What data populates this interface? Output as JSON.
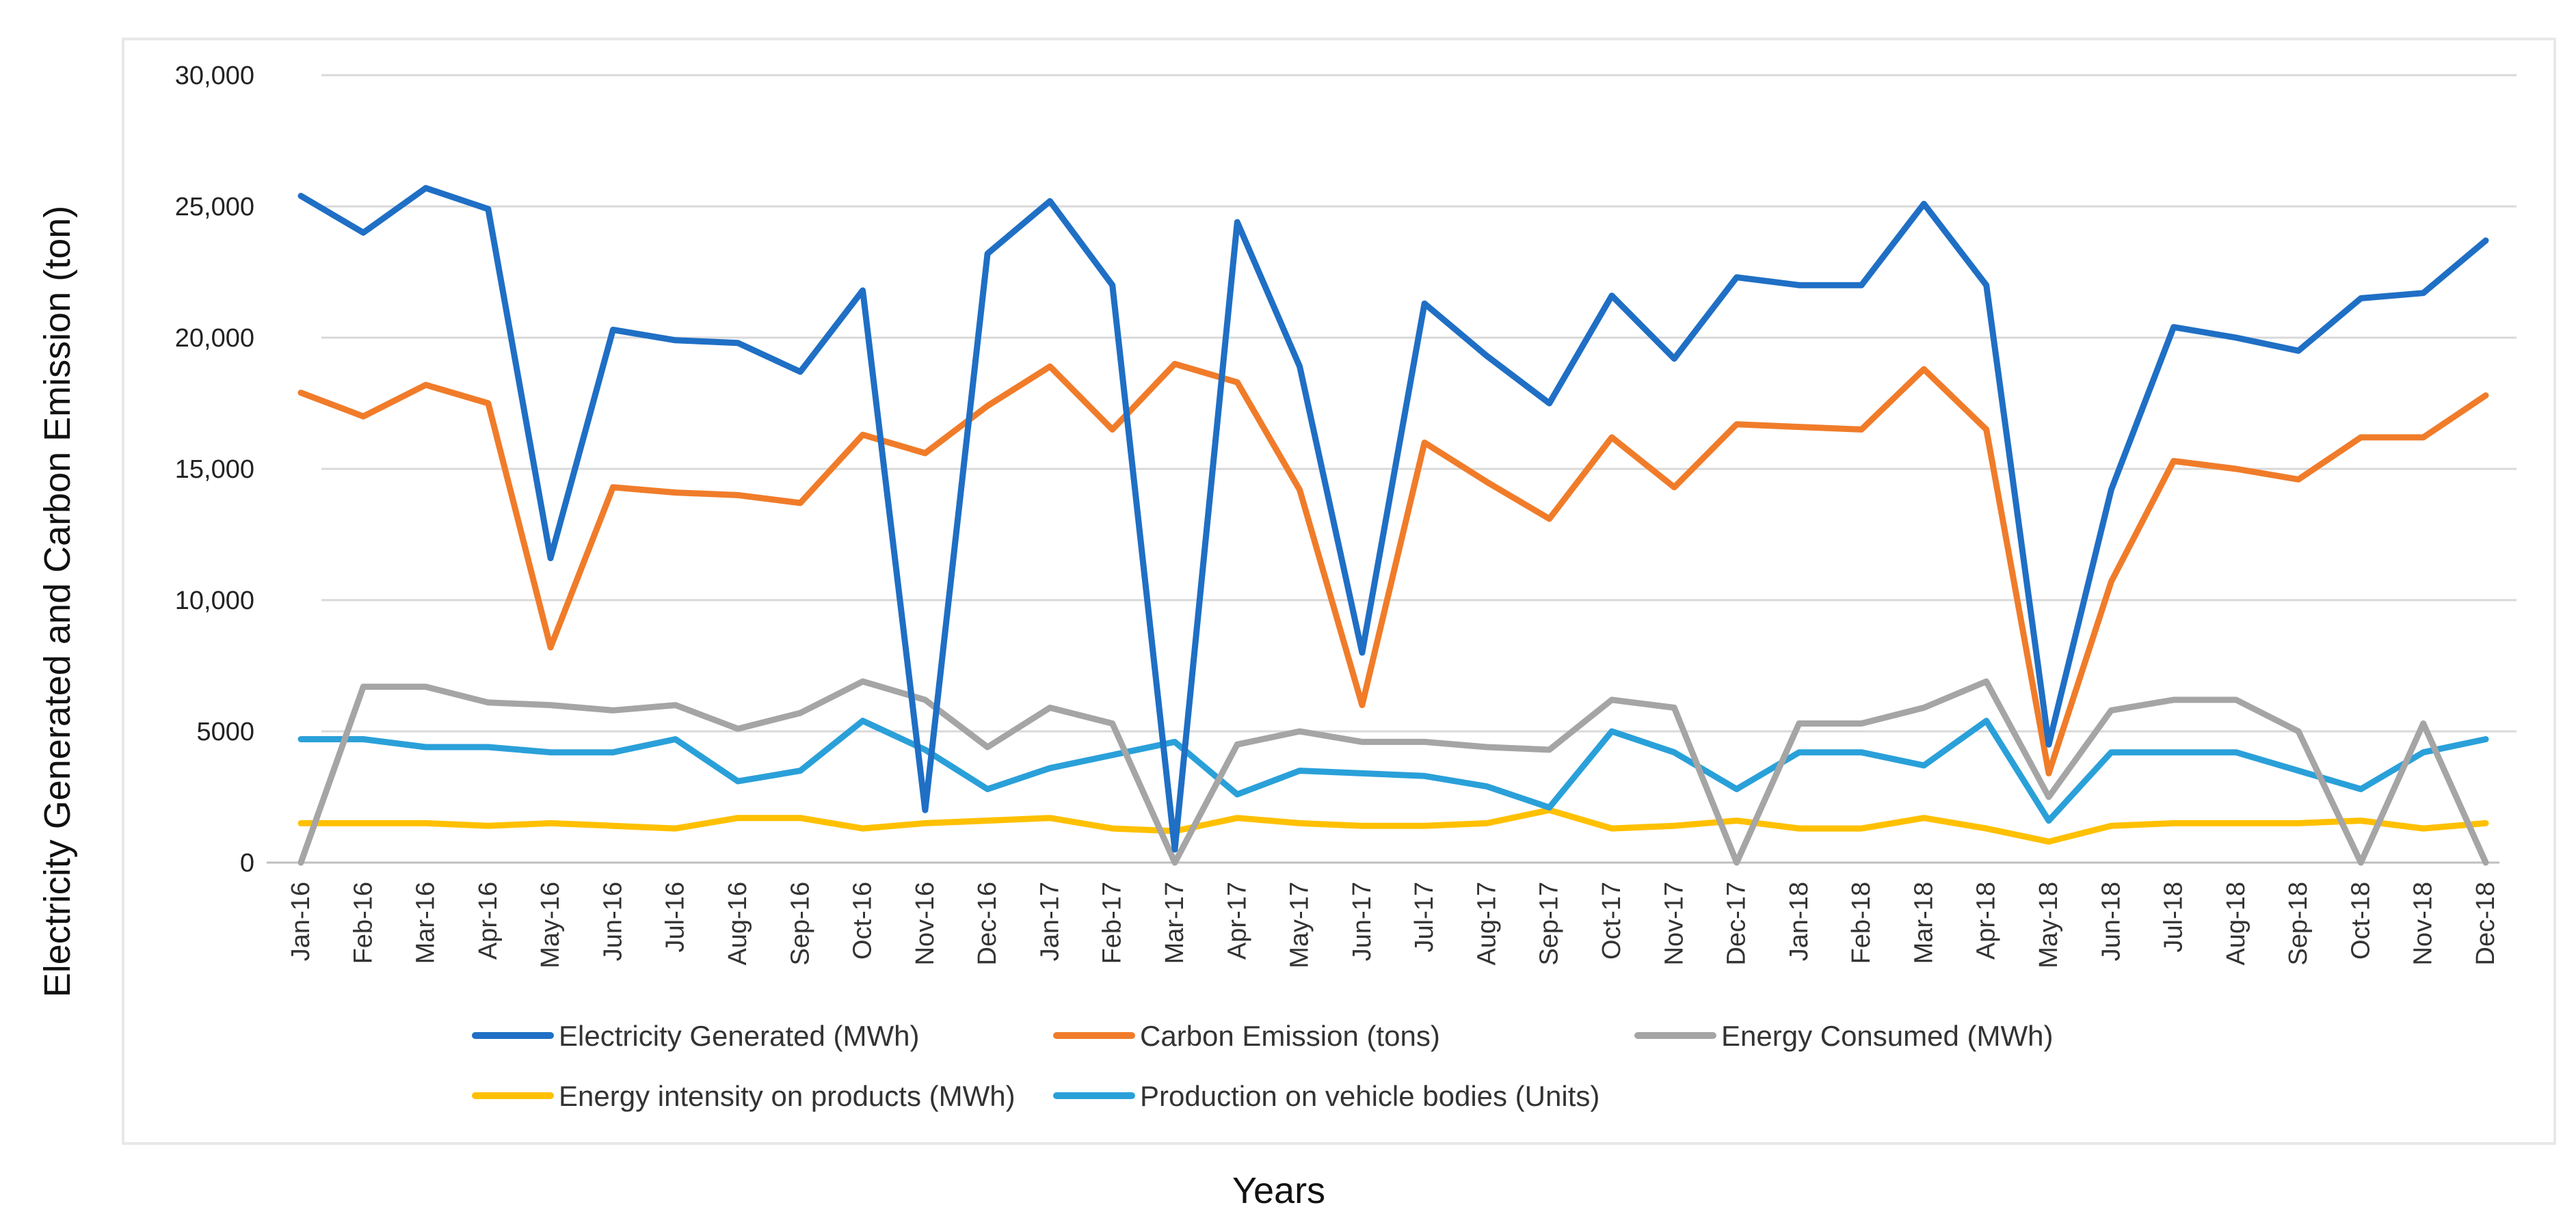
{
  "chart_data": {
    "type": "line",
    "title": "",
    "xlabel": "Years",
    "ylabel": "Electricity Generated and Carbon Emission (ton)",
    "ylim": [
      0,
      30000
    ],
    "yticks": [
      0,
      5000,
      10000,
      15000,
      20000,
      25000,
      30000
    ],
    "ytick_labels": [
      "0",
      "5000",
      "10,000",
      "15,000",
      "20,000",
      "25,000",
      "30,000"
    ],
    "grid": "horizontal",
    "legend_position": "bottom",
    "categories": [
      "Jan-16",
      "Feb-16",
      "Mar-16",
      "Apr-16",
      "May-16",
      "Jun-16",
      "Jul-16",
      "Aug-16",
      "Sep-16",
      "Oct-16",
      "Nov-16",
      "Dec-16",
      "Jan-17",
      "Feb-17",
      "Mar-17",
      "Apr-17",
      "May-17",
      "Jun-17",
      "Jul-17",
      "Aug-17",
      "Sep-17",
      "Oct-17",
      "Nov-17",
      "Dec-17",
      "Jan-18",
      "Feb-18",
      "Mar-18",
      "Apr-18",
      "May-18",
      "Jun-18",
      "Jul-18",
      "Aug-18",
      "Sep-18",
      "Oct-18",
      "Nov-18",
      "Dec-18"
    ],
    "series": [
      {
        "name": "Electricity Generated (MWh)",
        "color": "#1f6fc5",
        "values": [
          25400,
          24000,
          25700,
          24900,
          11600,
          20300,
          19900,
          19800,
          18700,
          21800,
          2000,
          23200,
          25200,
          22000,
          500,
          24400,
          18900,
          8000,
          21300,
          19300,
          17500,
          21600,
          19200,
          22300,
          22000,
          22000,
          25100,
          22000,
          4500,
          14200,
          20400,
          20000,
          19500,
          21500,
          21700,
          23700
        ]
      },
      {
        "name": "Carbon Emission (tons)",
        "color": "#f07c2a",
        "values": [
          17900,
          17000,
          18200,
          17500,
          8200,
          14300,
          14100,
          14000,
          13700,
          16300,
          15600,
          17400,
          18900,
          16500,
          19000,
          18300,
          14200,
          6000,
          16000,
          14500,
          13100,
          16200,
          14300,
          16700,
          16600,
          16500,
          18800,
          16500,
          3400,
          10700,
          15300,
          15000,
          14600,
          16200,
          16200,
          17800
        ]
      },
      {
        "name": "Energy Consumed (MWh)",
        "color": "#a5a5a5",
        "values": [
          0,
          6700,
          6700,
          6100,
          6000,
          5800,
          6000,
          5100,
          5700,
          6900,
          6200,
          4400,
          5900,
          5300,
          0,
          4500,
          5000,
          4600,
          4600,
          4400,
          4300,
          6200,
          5900,
          0,
          5300,
          5300,
          5900,
          6900,
          2500,
          5800,
          6200,
          6200,
          5000,
          0,
          5300,
          0
        ]
      },
      {
        "name": "Energy intensity on products (MWh)",
        "color": "#ffc000",
        "values": [
          1500,
          1500,
          1500,
          1400,
          1500,
          1400,
          1300,
          1700,
          1700,
          1300,
          1500,
          1600,
          1700,
          1300,
          1200,
          1700,
          1500,
          1400,
          1400,
          1500,
          2000,
          1300,
          1400,
          1600,
          1300,
          1300,
          1700,
          1300,
          800,
          1400,
          1500,
          1500,
          1500,
          1600,
          1300,
          1500
        ]
      },
      {
        "name": "Production on vehicle bodies (Units)",
        "color": "#2aa0d9",
        "values": [
          4700,
          4700,
          4400,
          4400,
          4200,
          4200,
          4700,
          3100,
          3500,
          5400,
          4300,
          2800,
          3600,
          4100,
          4600,
          2600,
          3500,
          3400,
          3300,
          2900,
          2100,
          5000,
          4200,
          2800,
          4200,
          4200,
          3700,
          5400,
          1600,
          4200,
          4200,
          4200,
          3500,
          2800,
          4200,
          4700
        ]
      }
    ]
  }
}
